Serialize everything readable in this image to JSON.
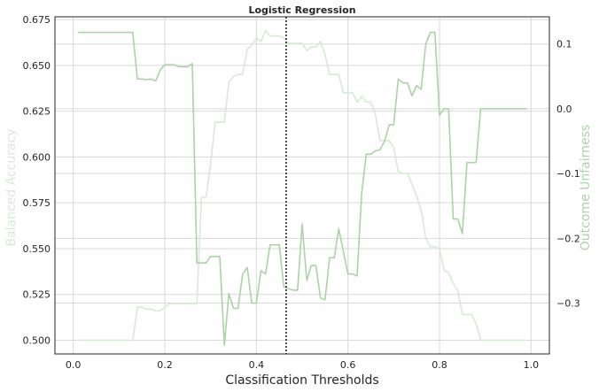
{
  "chart_data": {
    "type": "line",
    "title": "Logistic Regression",
    "xlabel": "Classification Thresholds",
    "ylabel_left": "Balanced Accuracy",
    "ylabel_right": "Outcome Unfairness",
    "xlim": [
      -0.04,
      1.04
    ],
    "ylim_left": [
      0.4925,
      0.6765
    ],
    "ylim_right": [
      -0.3785,
      0.142
    ],
    "x_ticks": [
      0.0,
      0.2,
      0.4,
      0.6,
      0.8,
      1.0
    ],
    "x_tick_labels": [
      "0.0",
      "0.2",
      "0.4",
      "0.6",
      "0.8",
      "1.0"
    ],
    "y_left_ticks": [
      0.5,
      0.525,
      0.55,
      0.575,
      0.6,
      0.625,
      0.65,
      0.675
    ],
    "y_left_tick_labels": [
      "0.500",
      "0.525",
      "0.550",
      "0.575",
      "0.600",
      "0.625",
      "0.650",
      "0.675"
    ],
    "y_right_ticks": [
      0.1,
      0.0,
      -0.1,
      -0.2,
      -0.3
    ],
    "y_right_tick_labels": [
      "0.1",
      "0.0",
      "−0.1",
      "−0.2",
      "−0.3"
    ],
    "grid": true,
    "threshold_line_x": 0.465,
    "colors": {
      "balanced_accuracy": "#d4ecd0",
      "outcome_unfairness": "#a8d5a2",
      "grid": "#d9d9d9",
      "threshold": "#222222",
      "spine": "#262626"
    },
    "series": [
      {
        "name": "Balanced Accuracy",
        "axis": "left",
        "x": [
          0.01,
          0.13,
          0.14,
          0.15,
          0.16,
          0.17,
          0.18,
          0.19,
          0.2,
          0.21,
          0.22,
          0.23,
          0.24,
          0.25,
          0.26,
          0.27,
          0.28,
          0.29,
          0.3,
          0.31,
          0.32,
          0.33,
          0.34,
          0.35,
          0.36,
          0.37,
          0.38,
          0.39,
          0.4,
          0.41,
          0.42,
          0.43,
          0.44,
          0.45,
          0.46,
          0.47,
          0.48,
          0.49,
          0.5,
          0.51,
          0.52,
          0.53,
          0.54,
          0.55,
          0.56,
          0.57,
          0.58,
          0.59,
          0.6,
          0.61,
          0.62,
          0.63,
          0.64,
          0.65,
          0.66,
          0.67,
          0.68,
          0.69,
          0.7,
          0.71,
          0.72,
          0.73,
          0.74,
          0.75,
          0.76,
          0.77,
          0.78,
          0.79,
          0.8,
          0.81,
          0.82,
          0.83,
          0.84,
          0.85,
          0.86,
          0.87,
          0.88,
          0.89,
          0.9,
          0.99
        ],
        "y": [
          0.5,
          0.5,
          0.518,
          0.518,
          0.517,
          0.517,
          0.516,
          0.516,
          0.518,
          0.52,
          0.52,
          0.52,
          0.52,
          0.52,
          0.52,
          0.52,
          0.578,
          0.578,
          0.596,
          0.619,
          0.619,
          0.619,
          0.641,
          0.644,
          0.645,
          0.645,
          0.659,
          0.661,
          0.665,
          0.663,
          0.669,
          0.666,
          0.666,
          0.666,
          0.665,
          0.662,
          0.662,
          0.662,
          0.662,
          0.658,
          0.66,
          0.66,
          0.663,
          0.656,
          0.645,
          0.645,
          0.645,
          0.635,
          0.635,
          0.635,
          0.63,
          0.633,
          0.63,
          0.63,
          0.623,
          0.609,
          0.609,
          0.609,
          0.605,
          0.592,
          0.591,
          0.591,
          0.585,
          0.579,
          0.571,
          0.556,
          0.551,
          0.551,
          0.55,
          0.538,
          0.537,
          0.531,
          0.527,
          0.514,
          0.514,
          0.514,
          0.509,
          0.5,
          0.5,
          0.5
        ]
      },
      {
        "name": "Outcome Unfairness",
        "axis": "right",
        "x": [
          0.01,
          0.13,
          0.14,
          0.15,
          0.16,
          0.17,
          0.18,
          0.19,
          0.2,
          0.21,
          0.22,
          0.23,
          0.24,
          0.25,
          0.26,
          0.27,
          0.28,
          0.29,
          0.3,
          0.31,
          0.32,
          0.33,
          0.34,
          0.35,
          0.36,
          0.37,
          0.38,
          0.39,
          0.4,
          0.41,
          0.42,
          0.43,
          0.44,
          0.45,
          0.46,
          0.47,
          0.48,
          0.49,
          0.5,
          0.51,
          0.52,
          0.53,
          0.54,
          0.55,
          0.56,
          0.57,
          0.58,
          0.59,
          0.6,
          0.61,
          0.62,
          0.63,
          0.64,
          0.65,
          0.66,
          0.67,
          0.68,
          0.69,
          0.7,
          0.71,
          0.72,
          0.73,
          0.74,
          0.75,
          0.76,
          0.77,
          0.78,
          0.79,
          0.8,
          0.81,
          0.82,
          0.83,
          0.84,
          0.85,
          0.86,
          0.87,
          0.88,
          0.89,
          0.9,
          0.99
        ],
        "y": [
          0.118,
          0.118,
          0.046,
          0.046,
          0.045,
          0.046,
          0.043,
          0.06,
          0.068,
          0.068,
          0.068,
          0.065,
          0.065,
          0.065,
          0.07,
          -0.238,
          -0.238,
          -0.238,
          -0.228,
          -0.228,
          -0.228,
          -0.365,
          -0.285,
          -0.308,
          -0.308,
          -0.255,
          -0.245,
          -0.3,
          -0.3,
          -0.25,
          -0.255,
          -0.21,
          -0.21,
          -0.21,
          -0.275,
          -0.278,
          -0.28,
          -0.28,
          -0.178,
          -0.265,
          -0.242,
          -0.242,
          -0.292,
          -0.295,
          -0.23,
          -0.23,
          -0.185,
          -0.22,
          -0.255,
          -0.255,
          -0.258,
          -0.13,
          -0.07,
          -0.07,
          -0.065,
          -0.063,
          -0.05,
          -0.025,
          -0.025,
          0.046,
          0.04,
          0.04,
          0.02,
          0.036,
          0.03,
          0.1,
          0.118,
          0.118,
          -0.01,
          0.0,
          0.0,
          -0.17,
          -0.17,
          -0.193,
          -0.083,
          -0.083,
          -0.083,
          0.0,
          0.0,
          0.0
        ]
      }
    ]
  }
}
